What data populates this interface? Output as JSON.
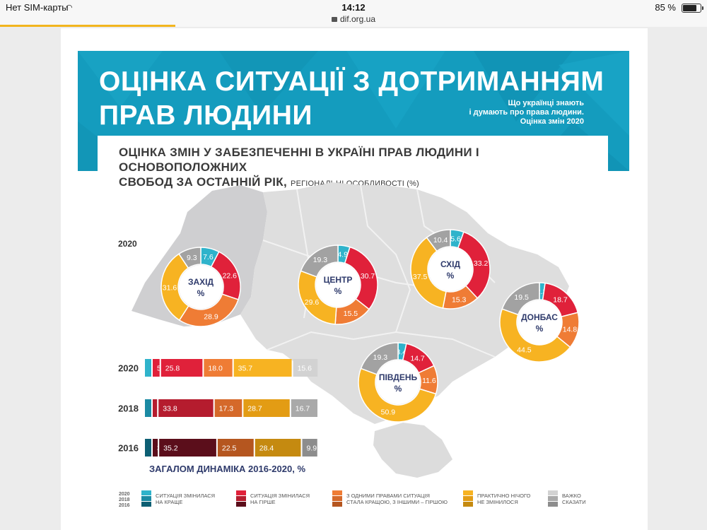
{
  "status_bar": {
    "carrier": "Нет SIM-карты",
    "time": "14:12",
    "url": "dif.org.ua",
    "battery": "85 %"
  },
  "header": {
    "title_line1": "ОЦІНКА СИТУАЦІЇ З ДОТРИМАННЯМ",
    "title_line2": "ПРАВ ЛЮДИНИ",
    "side_line1": "Що українці знають",
    "side_line2": "і думають про права людини.",
    "side_line3": "Оцінка змін 2020"
  },
  "subheader": {
    "line1": "ОЦІНКА ЗМІН У ЗАБЕЗПЕЧЕННІ В УКРАЇНІ ПРАВ ЛЮДИНИ І ОСНОВОПОЛОЖНИХ",
    "line2": "СВОБОД ЗА ОСТАННІЙ РІК,",
    "line2_small": "РЕГІОНАЛЬНІ ОСОБЛИВОСТІ (%)"
  },
  "colors": {
    "better": "#2fb3cb",
    "worse": "#e0213a",
    "mixed": "#ef7c35",
    "unchanged": "#f7b322",
    "hard_to_say": "#a2a2a2",
    "banner": "#149cbe",
    "map": "#dcdcdc",
    "text_dark": "#2e3a6b"
  },
  "chart_data": [
    {
      "type": "donut",
      "title": "2020",
      "regions": [
        {
          "name": "ЗАХІД",
          "unit": "%",
          "values": {
            "better": 7.6,
            "worse": 22.6,
            "mixed": 28.9,
            "unchanged": 31.6,
            "hard": 9.3
          }
        },
        {
          "name": "ЦЕНТР",
          "unit": "%",
          "values": {
            "better": 4.9,
            "worse": 30.7,
            "mixed": 15.5,
            "unchanged": 29.6,
            "hard": 19.3
          }
        },
        {
          "name": "СХІД",
          "unit": "%",
          "values": {
            "better": 5.6,
            "worse": 33.2,
            "mixed": 15.3,
            "unchanged": 37.5,
            "hard": 10.4
          }
        },
        {
          "name": "ДОНБАС",
          "unit": "%",
          "values": {
            "better": 2.3,
            "worse": 18.7,
            "mixed": 14.8,
            "unchanged": 44.5,
            "hard": 19.5
          }
        },
        {
          "name": "ПІВДЕНЬ",
          "unit": "%",
          "values": {
            "better": 3.4,
            "worse": 14.7,
            "mixed": 11.6,
            "unchanged": 50.9,
            "hard": 19.3
          }
        }
      ]
    },
    {
      "type": "bar",
      "orientation": "horizontal",
      "stacked": true,
      "title": "ЗАГАЛОМ ДИНАМІКА 2016-2020, %",
      "categories": [
        "2020",
        "2018",
        "2016"
      ],
      "series": [
        {
          "key": "better",
          "values": [
            null,
            null,
            null
          ]
        },
        {
          "key": "worse",
          "values": [
            5.0,
            3.5,
            3.9
          ]
        },
        {
          "key": "worse2",
          "values": [
            25.8,
            33.8,
            35.2
          ]
        },
        {
          "key": "mixed",
          "values": [
            18.0,
            17.3,
            22.5
          ]
        },
        {
          "key": "unchanged",
          "values": [
            35.7,
            28.7,
            28.4
          ]
        },
        {
          "key": "hard",
          "values": [
            15.6,
            16.7,
            9.9
          ]
        }
      ],
      "labels": [
        [
          "5.0",
          "25.8",
          "18.0",
          "35.7",
          "15.6"
        ],
        [
          "3.5",
          "33.8",
          "17.3",
          "28.7",
          "16.7"
        ],
        [
          "3.9",
          "35.2",
          "22.5",
          "28.4",
          "9.9"
        ]
      ],
      "year_colors": {
        "2020": [
          "#2fb3cb",
          "#e0213a",
          "#ef7c35",
          "#f7b322",
          "#d2d2d2"
        ],
        "2018": [
          "#1b8aa3",
          "#b51c2e",
          "#d5692a",
          "#e39c14",
          "#a9a9a9"
        ],
        "2016": [
          "#0d5f73",
          "#5b0e1b",
          "#b5561f",
          "#c58a10",
          "#8d8d8d"
        ]
      }
    }
  ],
  "legend": {
    "years": [
      "2020",
      "2018",
      "2016"
    ],
    "items": [
      {
        "key": "better",
        "line1": "СИТУАЦІЯ ЗМІНИЛАСЯ",
        "line2": "НА КРАЩЕ",
        "shades": [
          "#2fb3cb",
          "#1b8aa3",
          "#0d5f73"
        ]
      },
      {
        "key": "worse",
        "line1": "СИТУАЦІЯ ЗМІНИЛАСЯ",
        "line2": "НА ГІРШЕ",
        "shades": [
          "#e0213a",
          "#b51c2e",
          "#5b0e1b"
        ]
      },
      {
        "key": "mixed",
        "line1": "З ОДНИМИ ПРАВАМИ СИТУАЦІЯ",
        "line2": "СТАЛА КРАЩОЮ, З ІНШИМИ – ГІРШОЮ",
        "shades": [
          "#ef7c35",
          "#d5692a",
          "#b5561f"
        ]
      },
      {
        "key": "unchanged",
        "line1": "ПРАКТИЧНО НІЧОГО",
        "line2": "НЕ ЗМІНИЛОСЯ",
        "shades": [
          "#f7b322",
          "#e39c14",
          "#c58a10"
        ]
      },
      {
        "key": "hard",
        "line1": "ВАЖКО",
        "line2": "СКАЗАТИ",
        "shades": [
          "#d2d2d2",
          "#a9a9a9",
          "#8d8d8d"
        ]
      }
    ]
  }
}
